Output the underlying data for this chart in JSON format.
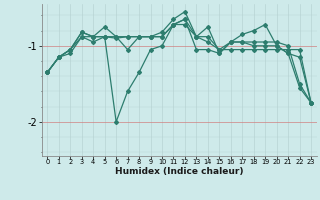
{
  "xlabel": "Humidex (Indice chaleur)",
  "ylabel": "",
  "background_color": "#ceeaea",
  "line_color": "#2d7d6e",
  "grid_color": "#b8d4d4",
  "x_ticks": [
    0,
    1,
    2,
    3,
    4,
    5,
    6,
    7,
    8,
    9,
    10,
    11,
    12,
    13,
    14,
    15,
    16,
    17,
    18,
    19,
    20,
    21,
    22,
    23
  ],
  "ylim": [
    -2.45,
    -0.45
  ],
  "yticks": [
    -2,
    -1
  ],
  "series": [
    {
      "x": [
        0,
        1,
        2,
        3,
        4,
        5,
        6,
        7,
        8,
        9,
        10,
        11,
        12,
        13,
        14,
        15,
        16,
        17,
        18,
        19,
        20,
        21,
        22,
        23
      ],
      "y": [
        -1.35,
        -1.15,
        -1.05,
        -0.82,
        -0.88,
        -0.88,
        -2.0,
        -1.6,
        -1.35,
        -1.05,
        -1.0,
        -0.72,
        -0.65,
        -1.05,
        -1.05,
        -1.1,
        -0.95,
        -0.95,
        -1.0,
        -1.0,
        -1.0,
        -1.1,
        -1.55,
        -1.75
      ]
    },
    {
      "x": [
        0,
        1,
        2,
        3,
        4,
        5,
        6,
        7,
        8,
        9,
        10,
        11,
        12,
        13,
        14,
        15,
        16,
        17,
        18,
        19,
        20,
        21,
        22,
        23
      ],
      "y": [
        -1.35,
        -1.15,
        -1.05,
        -0.88,
        -0.88,
        -0.88,
        -0.88,
        -0.88,
        -0.88,
        -0.88,
        -0.88,
        -0.72,
        -0.72,
        -0.88,
        -0.95,
        -1.05,
        -1.05,
        -1.05,
        -1.05,
        -1.05,
        -1.05,
        -1.05,
        -1.05,
        -1.75
      ]
    },
    {
      "x": [
        0,
        1,
        2,
        3,
        4,
        5,
        6,
        7,
        8,
        9,
        10,
        11,
        12,
        13,
        14,
        15,
        16,
        17,
        18,
        19,
        20,
        21,
        22,
        23
      ],
      "y": [
        -1.35,
        -1.15,
        -1.05,
        -0.82,
        -0.88,
        -0.75,
        -0.88,
        -1.05,
        -0.88,
        -0.88,
        -0.82,
        -0.65,
        -0.55,
        -0.88,
        -0.75,
        -1.1,
        -0.95,
        -0.85,
        -0.8,
        -0.72,
        -1.0,
        -1.1,
        -1.15,
        -1.75
      ]
    },
    {
      "x": [
        0,
        1,
        2,
        3,
        4,
        5,
        6,
        7,
        8,
        9,
        10,
        11,
        12,
        13,
        14,
        15,
        16,
        17,
        18,
        19,
        20,
        21,
        22,
        23
      ],
      "y": [
        -1.35,
        -1.15,
        -1.1,
        -0.88,
        -0.95,
        -0.88,
        -0.9,
        -0.88,
        -0.88,
        -0.88,
        -0.88,
        -0.72,
        -0.65,
        -0.88,
        -0.88,
        -1.05,
        -0.95,
        -0.95,
        -0.95,
        -0.95,
        -0.95,
        -1.0,
        -1.5,
        -1.75
      ]
    }
  ]
}
